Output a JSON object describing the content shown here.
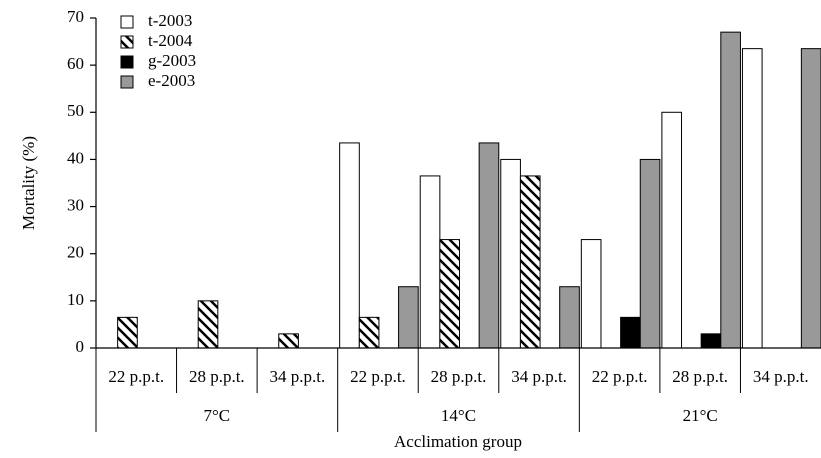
{
  "chart_data": {
    "type": "bar",
    "y_label": "Mortality (%)",
    "x_label": "Acclimation group",
    "categories": [
      "22 p.p.t.",
      "28 p.p.t.",
      "34 p.p.t.",
      "22 p.p.t.",
      "28 p.p.t.",
      "34 p.p.t.",
      "22 p.p.t.",
      "28 p.p.t.",
      "34 p.p.t."
    ],
    "groups": [
      "7°C",
      "14°C",
      "21°C"
    ],
    "series": [
      {
        "name": "t-2003",
        "color": "#ffffff",
        "hatch": false,
        "values": [
          0,
          0,
          0,
          43.5,
          36.5,
          40,
          23,
          50,
          63.5
        ]
      },
      {
        "name": "t-2004",
        "color": "#ffffff",
        "hatch": true,
        "values": [
          6.5,
          10,
          3,
          6.5,
          23,
          36.5,
          0,
          0,
          0
        ]
      },
      {
        "name": "g-2003",
        "color": "#000000",
        "hatch": false,
        "values": [
          0,
          0,
          0,
          0,
          0,
          0,
          6.5,
          3,
          0
        ]
      },
      {
        "name": "e-2003",
        "color": "#999999",
        "hatch": false,
        "values": [
          0,
          0,
          0,
          13,
          43.5,
          13,
          40,
          67,
          63.5
        ]
      }
    ],
    "ylim": [
      0,
      70
    ],
    "yticks": [
      0,
      10,
      20,
      30,
      40,
      50,
      60,
      70
    ],
    "legend": "top-left"
  }
}
